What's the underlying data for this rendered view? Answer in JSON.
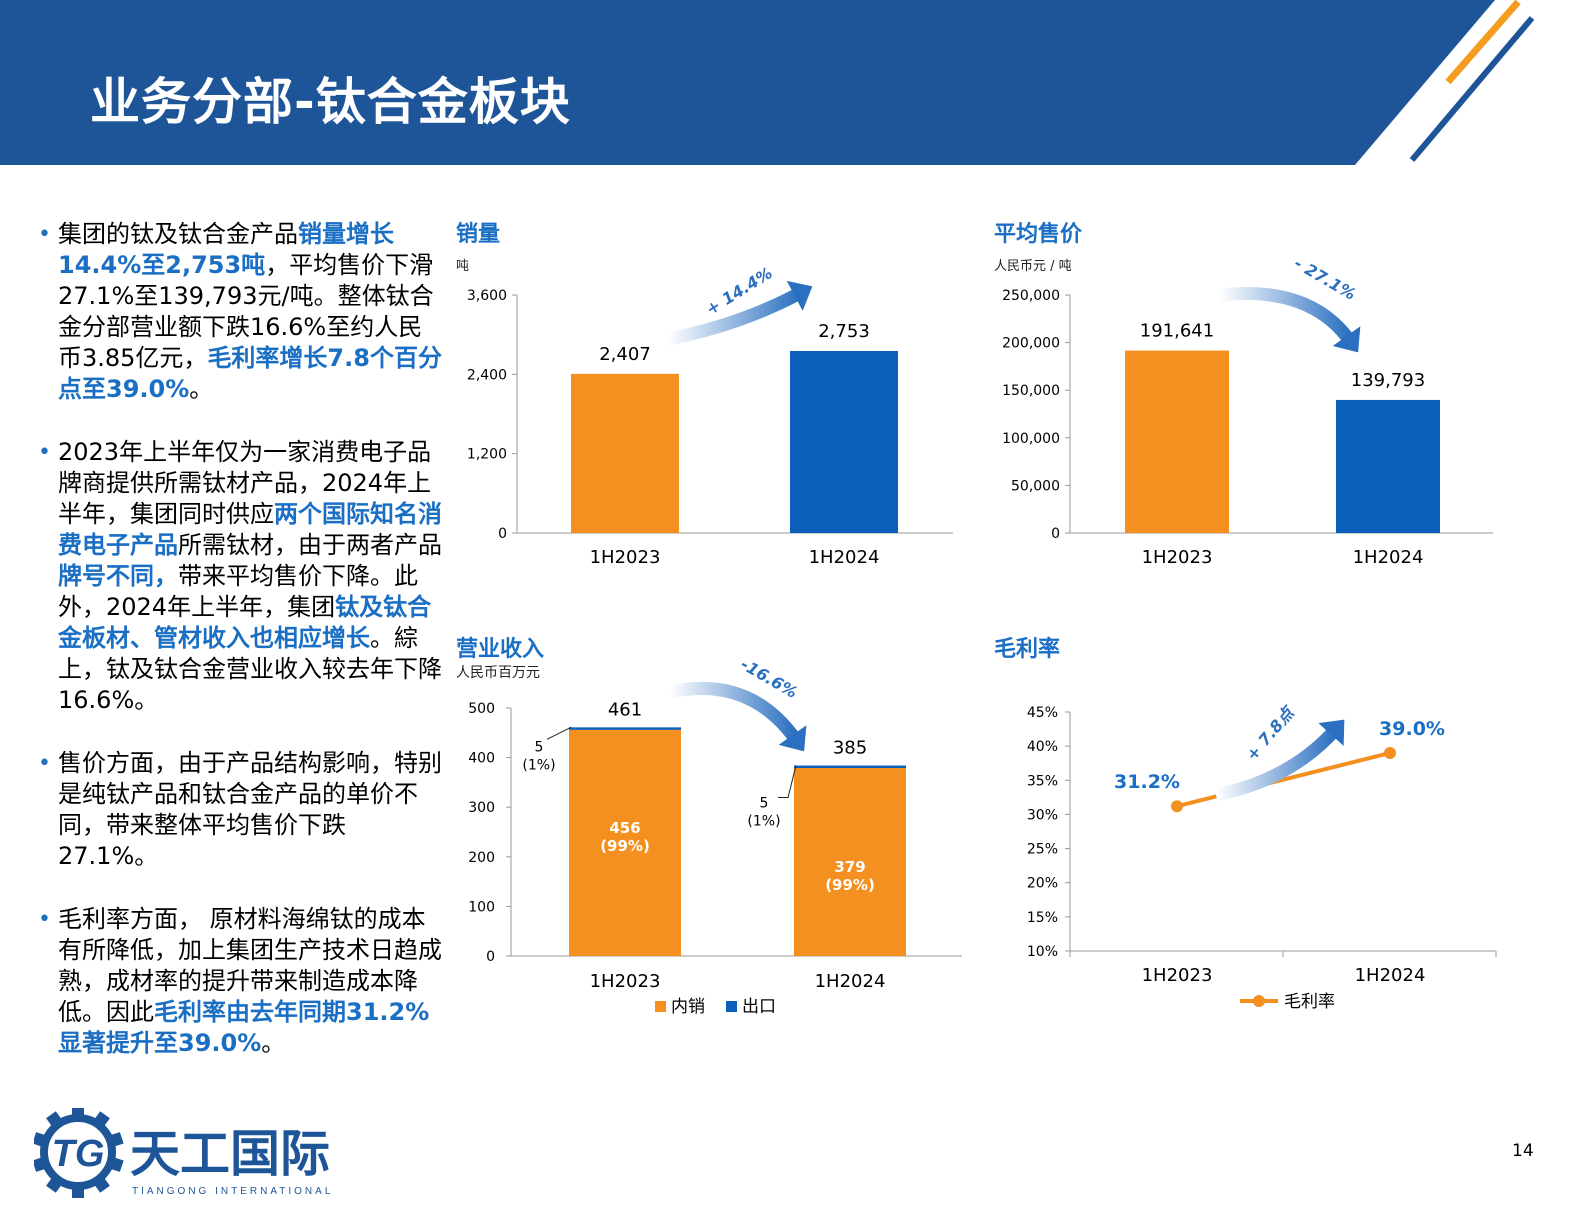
{
  "title": "业务分部-钛合金板块",
  "page_number": "14",
  "logo": {
    "name_cn": "天工国际",
    "name_en": "TIANGONG INTERNATIONAL",
    "mark": "TG"
  },
  "colors": {
    "header": "#1e5598",
    "domestic": "#f39020",
    "export": "#0a5fb8",
    "highlight": "#1a6fc4",
    "arrow": "#2a6fc0"
  },
  "bullets": [
    [
      {
        "t": "集团的钛及钛合金产品",
        "hl": false
      },
      {
        "t": "销量增长14.4%至2,753吨",
        "hl": true
      },
      {
        "t": "，平均售价下滑27.1%至139,793元/吨。整体钛合金分部营业额下跌16.6%至约人民币3.85亿元，",
        "hl": false
      },
      {
        "t": "毛利率增长7.8个百分点至39.0%",
        "hl": true
      },
      {
        "t": "。",
        "hl": false
      }
    ],
    [
      {
        "t": "2023年上半年仅为一家消费电子品牌商提供所需钛材产品，2024年上半年，集团同时供应",
        "hl": false
      },
      {
        "t": "两个国际知名消费电子产品",
        "hl": true
      },
      {
        "t": "所需钛材，由于两者产品",
        "hl": false
      },
      {
        "t": "牌号不同，",
        "hl": true
      },
      {
        "t": "带来平均售价下降。此外，2024年上半年，集团",
        "hl": false
      },
      {
        "t": "钛及钛合金板材、管材收入也相应增长",
        "hl": true
      },
      {
        "t": "。綜上，钛及钛合金营业收入较去年下降16.6%。",
        "hl": false
      }
    ],
    [
      {
        "t": "售价方面，由于产品结构影响，特别是纯钛产品和钛合金产品的单价不同，带来整体平均售价下跌27.1%。",
        "hl": false
      }
    ],
    [
      {
        "t": "毛利率方面， 原材料海绵钛的成本有所降低，加上集团生产技术日趋成熟，成材率的提升带来制造成本降低。因此",
        "hl": false
      },
      {
        "t": "毛利率由去年同期31.2%显著提升至39.0%",
        "hl": true
      },
      {
        "t": "。",
        "hl": false
      }
    ]
  ],
  "chart_data": [
    {
      "type": "bar",
      "title": "销量",
      "ylabel": "吨",
      "categories": [
        "1H2023",
        "1H2024"
      ],
      "values": [
        2407,
        2753
      ],
      "labels": [
        "2,407",
        "2,753"
      ],
      "ylim": [
        0,
        3600
      ],
      "yticks": [
        0,
        1200,
        2400,
        3600
      ],
      "ytick_labels": [
        "0",
        "1,200",
        "2,400",
        "3,600"
      ],
      "bar_colors": [
        "#f39020",
        "#0a5fb8"
      ],
      "annotation": "+ 14.4%"
    },
    {
      "type": "bar",
      "title": "平均售价",
      "ylabel": "人民币元 / 吨",
      "categories": [
        "1H2023",
        "1H2024"
      ],
      "values": [
        191641,
        139793
      ],
      "labels": [
        "191,641",
        "139,793"
      ],
      "ylim": [
        0,
        250000
      ],
      "yticks": [
        0,
        50000,
        100000,
        150000,
        200000,
        250000
      ],
      "ytick_labels": [
        "0",
        "50,000",
        "100,000",
        "150,000",
        "200,000",
        "250,000"
      ],
      "bar_colors": [
        "#f39020",
        "#0a5fb8"
      ],
      "annotation": "- 27.1%"
    },
    {
      "type": "bar",
      "stacked": true,
      "title": "营业收入",
      "ylabel": "人民币百万元",
      "categories": [
        "1H2023",
        "1H2024"
      ],
      "series": [
        {
          "name": "内销",
          "values": [
            456,
            379
          ],
          "labels": [
            "456",
            "379"
          ],
          "pct_labels": [
            "(99%)",
            "(99%)"
          ],
          "color": "#f39020"
        },
        {
          "name": "出口",
          "values": [
            5,
            5
          ],
          "labels": [
            "5",
            "5"
          ],
          "pct_labels": [
            "(1%)",
            "(1%)"
          ],
          "color": "#0a5fb8"
        }
      ],
      "totals": [
        "461",
        "385"
      ],
      "ylim": [
        0,
        500
      ],
      "yticks": [
        0,
        100,
        200,
        300,
        400,
        500
      ],
      "ytick_labels": [
        "0",
        "100",
        "200",
        "300",
        "400",
        "500"
      ],
      "legend_position": "bottom",
      "annotation": "-16.6%"
    },
    {
      "type": "line",
      "title": "毛利率",
      "categories": [
        "1H2023",
        "1H2024"
      ],
      "series": [
        {
          "name": "毛利率",
          "values": [
            31.2,
            39.0
          ],
          "labels": [
            "31.2%",
            "39.0%"
          ],
          "color": "#f39020"
        }
      ],
      "ylim": [
        10,
        45
      ],
      "yticks": [
        10,
        15,
        20,
        25,
        30,
        35,
        40,
        45
      ],
      "ytick_labels": [
        "10%",
        "15%",
        "20%",
        "25%",
        "30%",
        "35%",
        "40%",
        "45%"
      ],
      "legend_position": "bottom",
      "annotation": "+ 7.8点"
    }
  ]
}
